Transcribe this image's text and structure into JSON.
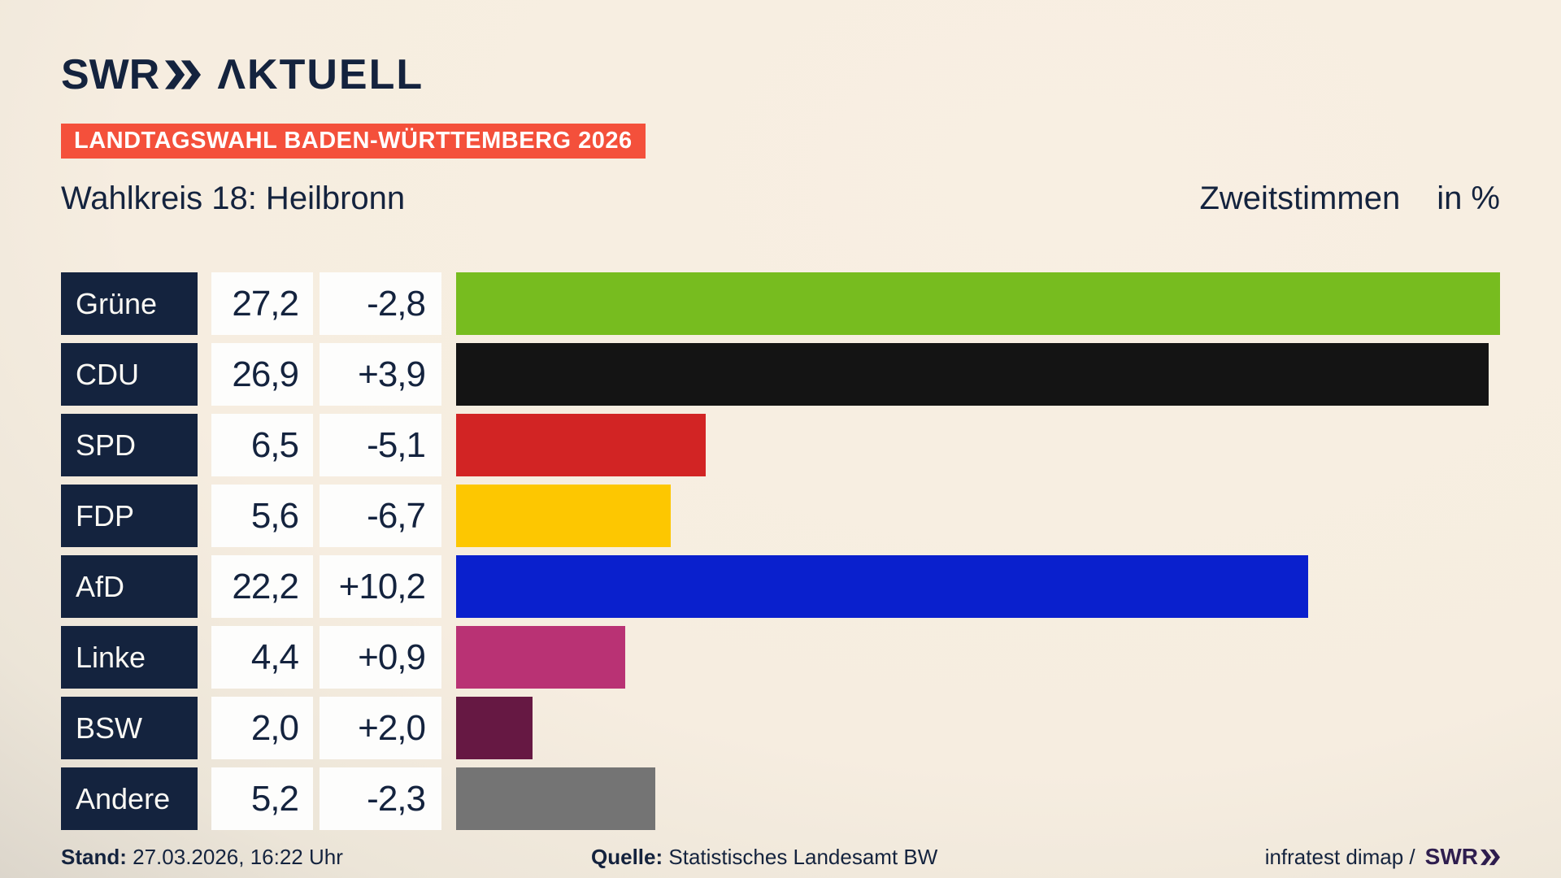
{
  "header": {
    "logo_swr": "SWR",
    "logo_aktuell": "ΛKTUELL",
    "banner": "LANDTAGSWAHL BADEN-WÜRTTEMBERG 2026"
  },
  "title": {
    "left": "Wahlkreis 18: Heilbronn",
    "right_label": "Zweitstimmen",
    "right_unit": "in %"
  },
  "chart_data": {
    "type": "bar",
    "orientation": "horizontal",
    "title": "Wahlkreis 18: Heilbronn",
    "value_header": "Zweitstimmen in %",
    "unit": "%",
    "scale_max": 27.2,
    "categories": [
      "Grüne",
      "CDU",
      "SPD",
      "FDP",
      "AfD",
      "Linke",
      "BSW",
      "Andere"
    ],
    "values": [
      27.2,
      26.9,
      6.5,
      5.6,
      22.2,
      4.4,
      2.0,
      5.2
    ],
    "value_labels": [
      "27,2",
      "26,9",
      "6,5",
      "5,6",
      "22,2",
      "4,4",
      "2,0",
      "5,2"
    ],
    "changes": [
      "-2,8",
      "+3,9",
      "-5,1",
      "-6,7",
      "+10,2",
      "+0,9",
      "+2,0",
      "-2,3"
    ],
    "bar_colors": [
      "#77bc1f",
      "#141414",
      "#d22424",
      "#fdc701",
      "#0a20cd",
      "#b93274",
      "#661843",
      "#747474"
    ]
  },
  "footer": {
    "stand_label": "Stand:",
    "stand_value": "27.03.2026, 16:22 Uhr",
    "quelle_label": "Quelle:",
    "quelle_value": "Statistisches Landesamt BW",
    "credit_text": "infratest dimap /",
    "credit_logo": "SWR"
  },
  "colors": {
    "navy": "#14233e",
    "banner_red": "#f4503b",
    "box_white": "#fdfdfc",
    "background_cream": "#f8efe2",
    "background_gray": "#c9c3ba",
    "footer_logo_purple": "#2e1d4e"
  }
}
